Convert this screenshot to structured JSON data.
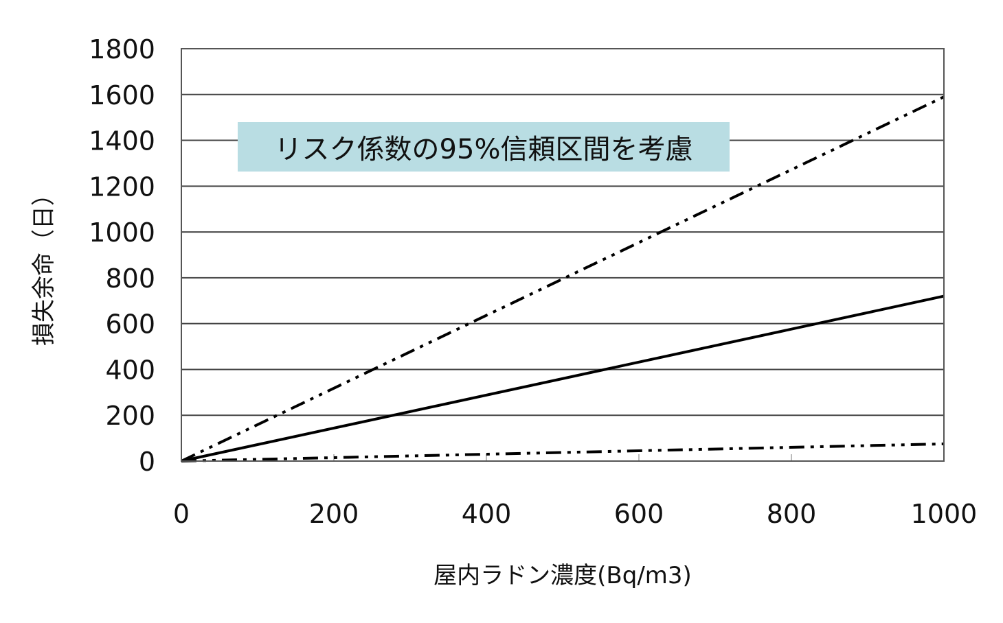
{
  "chart_data": {
    "type": "line",
    "xlabel": "屋内ラドン濃度(Bq/m3)",
    "ylabel": "損失余命（日）",
    "xlim": [
      0,
      1000
    ],
    "ylim": [
      0,
      1800
    ],
    "xticks": [
      "0",
      "200",
      "400",
      "600",
      "800",
      "1000"
    ],
    "yticks": [
      "0",
      "200",
      "400",
      "600",
      "800",
      "1000",
      "1200",
      "1400",
      "1600",
      "1800"
    ],
    "grid": "horizontal",
    "annotation": "リスク係数の95%信頼区間を考慮",
    "annotation_color": "#b9dde3",
    "series": [
      {
        "style": "solid",
        "x": [
          0,
          1000
        ],
        "y": [
          0,
          720
        ]
      },
      {
        "style": "dash-dot-dot",
        "x": [
          0,
          1000
        ],
        "y": [
          0,
          1590
        ]
      },
      {
        "style": "dash-dot-dot",
        "x": [
          0,
          1000
        ],
        "y": [
          0,
          75
        ]
      }
    ]
  }
}
